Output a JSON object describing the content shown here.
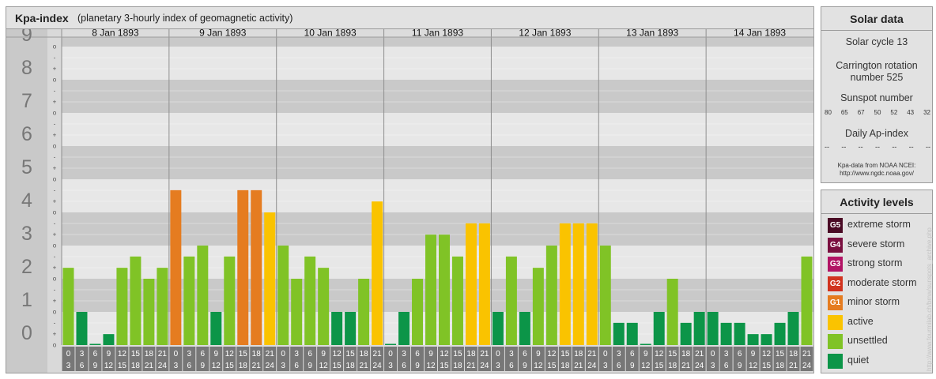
{
  "header": {
    "title": "Kpa-index",
    "subtitle": "(planetary 3-hourly index of geomagnetic activity)"
  },
  "colors": {
    "quiet": "#0c9548",
    "unsettled": "#80c326",
    "active": "#fac300",
    "minor": "#e57c20",
    "moderate": "#d1331f",
    "strong": "#b21365",
    "severe": "#7a1040",
    "extreme": "#4a0b25"
  },
  "chart_data": {
    "type": "bar",
    "title": "Kpa-index",
    "subtitle": "(planetary 3-hourly index of geomagnetic activity)",
    "ylim": [
      0,
      9
    ],
    "y_ticks": [
      "0",
      "1",
      "2",
      "3",
      "4",
      "5",
      "6",
      "7",
      "8",
      "9"
    ],
    "y_minor_ticks": [
      "o",
      "+",
      "-"
    ],
    "days": [
      "8 Jan 1893",
      "9 Jan 1893",
      "10 Jan 1893",
      "11 Jan 1893",
      "12 Jan 1893",
      "13 Jan 1893",
      "14 Jan 1893"
    ],
    "interval_starts": [
      "0",
      "3",
      "6",
      "9",
      "12",
      "15",
      "18",
      "21"
    ],
    "interval_ends": [
      "3",
      "6",
      "9",
      "12",
      "15",
      "18",
      "21",
      "24"
    ],
    "values": [
      [
        2.33,
        1.0,
        0.0,
        0.33,
        2.33,
        2.67,
        2.0,
        2.33
      ],
      [
        4.67,
        2.67,
        3.0,
        1.0,
        2.67,
        4.67,
        4.67,
        4.0
      ],
      [
        3.0,
        2.0,
        2.67,
        2.33,
        1.0,
        1.0,
        2.0,
        4.33
      ],
      [
        0.0,
        1.0,
        2.0,
        3.33,
        3.33,
        2.67,
        3.67,
        3.67
      ],
      [
        1.0,
        2.67,
        1.0,
        2.33,
        3.0,
        3.67,
        3.67,
        3.67
      ],
      [
        3.0,
        0.67,
        0.67,
        0.0,
        1.0,
        2.0,
        0.67,
        1.0
      ],
      [
        1.0,
        0.67,
        0.67,
        0.33,
        0.33,
        0.67,
        1.0,
        2.67
      ]
    ]
  },
  "solar": {
    "heading": "Solar data",
    "cycle": "Solar cycle 13",
    "carrington_line1": "Carrington rotation",
    "carrington_line2": "number 525",
    "sunspot_label": "Sunspot number",
    "sunspot_values": [
      "80",
      "65",
      "67",
      "50",
      "52",
      "43",
      "32"
    ],
    "ap_label": "Daily Ap-index",
    "ap_values": [
      "--",
      "--",
      "--",
      "--",
      "--",
      "--",
      "--"
    ],
    "source_line1": "Kpa-data from NOAA NCEI:",
    "source_line2": "http://www.ngdc.noaa.gov/"
  },
  "activity": {
    "heading": "Activity levels",
    "levels": [
      {
        "badge": "G5",
        "label": "extreme storm",
        "color": "#4a0b25"
      },
      {
        "badge": "G4",
        "label": "severe storm",
        "color": "#7a1040"
      },
      {
        "badge": "G3",
        "label": "strong storm",
        "color": "#b21365"
      },
      {
        "badge": "G2",
        "label": "moderate storm",
        "color": "#d1331f"
      },
      {
        "badge": "G1",
        "label": "minor storm",
        "color": "#e57c20"
      },
      {
        "badge": "",
        "label": "active",
        "color": "#fac300"
      },
      {
        "badge": "",
        "label": "unsettled",
        "color": "#80c326"
      },
      {
        "badge": "",
        "label": "quiet",
        "color": "#0c9548"
      }
    ]
  },
  "watermark": "http://www.fourmilab.ch/bmw/sunspots_archive.php"
}
